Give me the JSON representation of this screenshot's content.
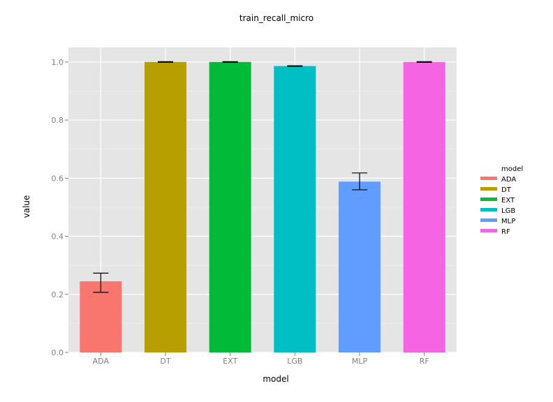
{
  "chart_data": {
    "type": "bar",
    "title": "train_recall_micro",
    "xlabel": "model",
    "ylabel": "value",
    "categories": [
      "ADA",
      "DT",
      "EXT",
      "LGB",
      "MLP",
      "RF"
    ],
    "values": [
      0.245,
      1.0,
      1.0,
      0.986,
      0.588,
      1.0
    ],
    "error_low": [
      0.207,
      0.999,
      0.999,
      0.985,
      0.56,
      0.999
    ],
    "error_high": [
      0.273,
      1.001,
      1.001,
      0.987,
      0.618,
      1.001
    ],
    "colors": [
      "#F8766D",
      "#B79F00",
      "#00BA38",
      "#00BFC4",
      "#619CFF",
      "#F564E3"
    ],
    "ylim": [
      0,
      1.05
    ],
    "yticks": [
      "0.0",
      "0.2",
      "0.4",
      "0.6",
      "0.8",
      "1.0"
    ],
    "grid": true,
    "legend": {
      "title": "model",
      "placement": "right",
      "entries": [
        "ADA",
        "DT",
        "EXT",
        "LGB",
        "MLP",
        "RF"
      ]
    }
  }
}
